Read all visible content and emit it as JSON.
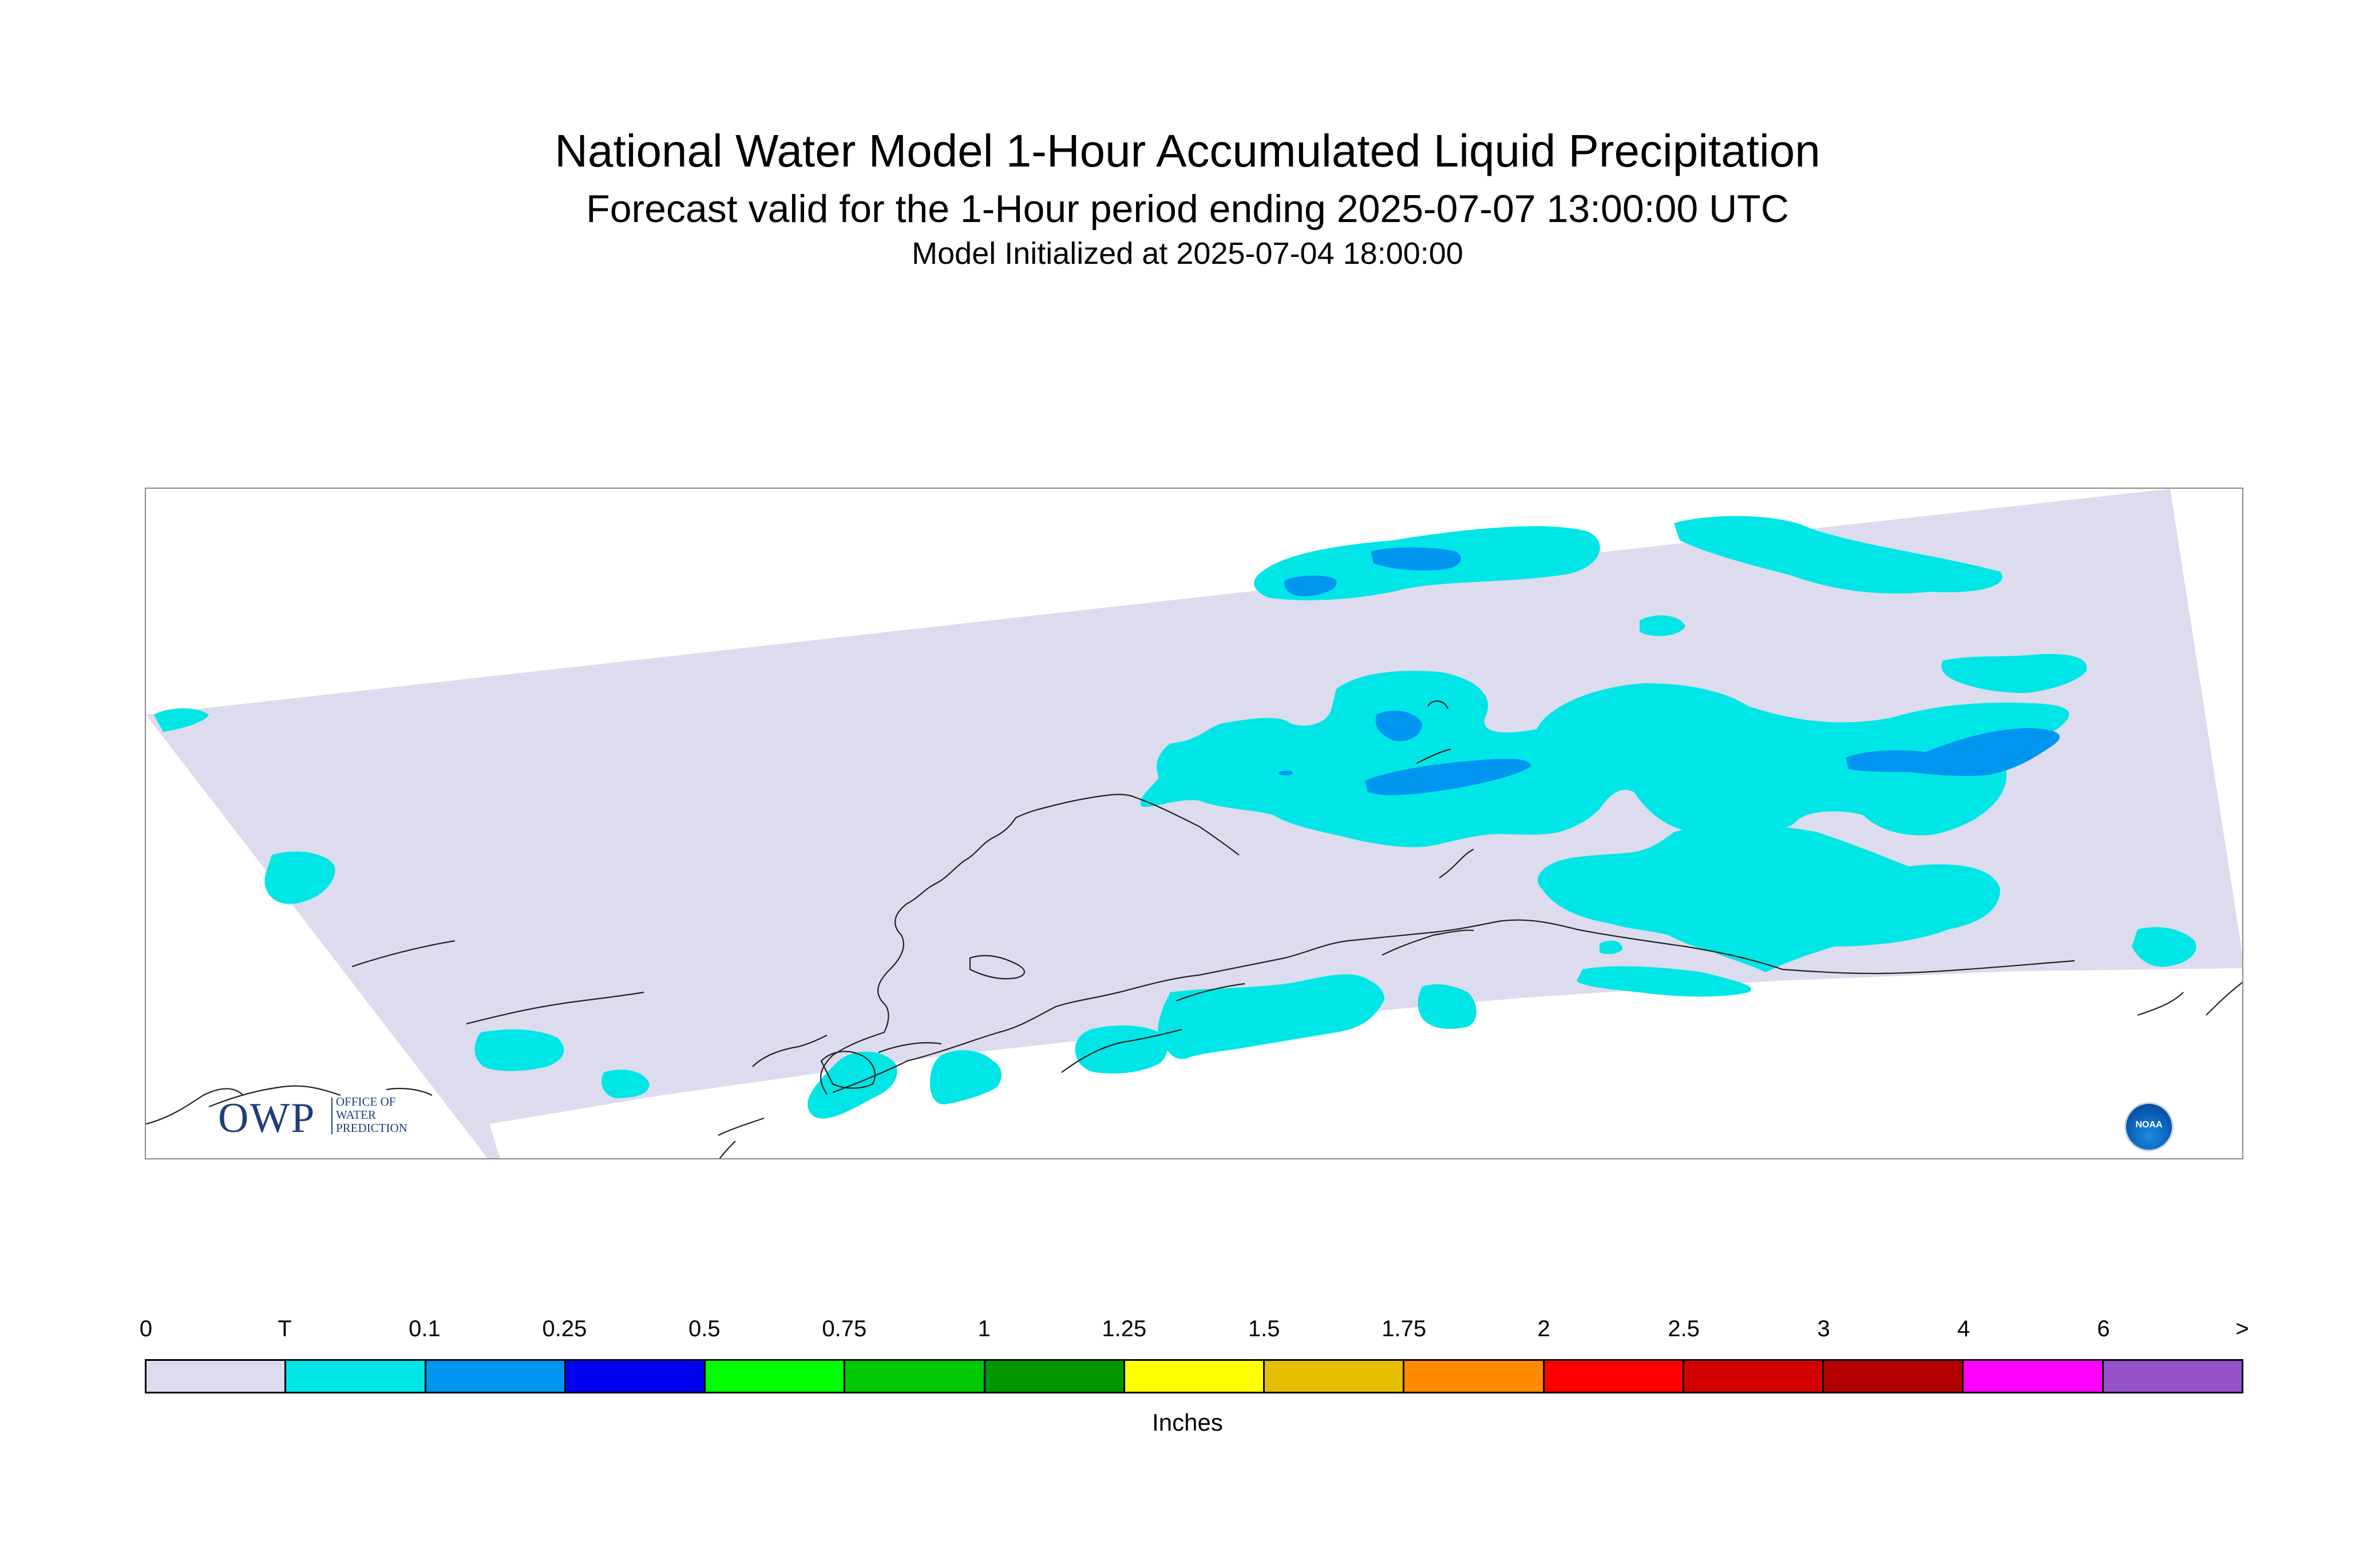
{
  "title": "National Water Model 1-Hour Accumulated Liquid Precipitation",
  "subtitle": "Forecast valid for the 1-Hour period ending 2025-07-07 13:00:00 UTC",
  "init_line": "Model Initialized at 2025-07-04 18:00:00",
  "logos": {
    "owp_big": "OWP",
    "owp_small_1": "OFFICE OF",
    "owp_small_2": "WATER",
    "owp_small_3": "PREDICTION",
    "noaa": "NOAA"
  },
  "legend": {
    "units": "Inches",
    "labels": [
      "0",
      "T",
      "0.1",
      "0.25",
      "0.5",
      "0.75",
      "1",
      "1.25",
      "1.5",
      "1.75",
      "2",
      "2.5",
      "3",
      "4",
      "6",
      ">"
    ],
    "colors": [
      "#dcdcee",
      "#00e6e6",
      "#0096f0",
      "#0000ee",
      "#00ff00",
      "#00c800",
      "#009600",
      "#ffff00",
      "#e6be00",
      "#ff8c00",
      "#ff0000",
      "#d20000",
      "#b40000",
      "#ff00ff",
      "#9650c8"
    ]
  },
  "map": {
    "domain_color": "#dcdcee",
    "trace_color": "#00e6e6",
    "light_color": "#0096f0",
    "coast_color": "#222222"
  }
}
